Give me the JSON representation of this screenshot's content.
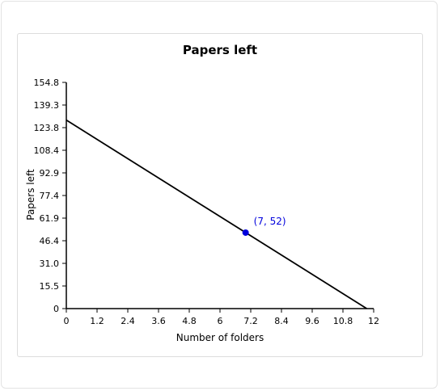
{
  "chart_data": {
    "type": "line",
    "title": "Papers left",
    "xlabel": "Number of folders",
    "ylabel": "Papers left",
    "xlim": [
      0,
      12
    ],
    "ylim": [
      0,
      154.8
    ],
    "x_ticks": [
      "0",
      "1.2",
      "2.4",
      "3.6",
      "4.8",
      "6",
      "7.2",
      "8.4",
      "9.6",
      "10.8",
      "12"
    ],
    "y_ticks": [
      "0",
      "15.5",
      "31.0",
      "46.4",
      "61.9",
      "77.4",
      "92.9",
      "108.4",
      "123.8",
      "139.3",
      "154.8"
    ],
    "series": [
      {
        "x": [
          0,
          11.73
        ],
        "y": [
          129,
          0
        ],
        "color": "#000000"
      }
    ],
    "annotations": [
      {
        "x": 7,
        "y": 52,
        "label": "(7, 52)",
        "color": "#0000dd"
      }
    ],
    "grid": false
  }
}
